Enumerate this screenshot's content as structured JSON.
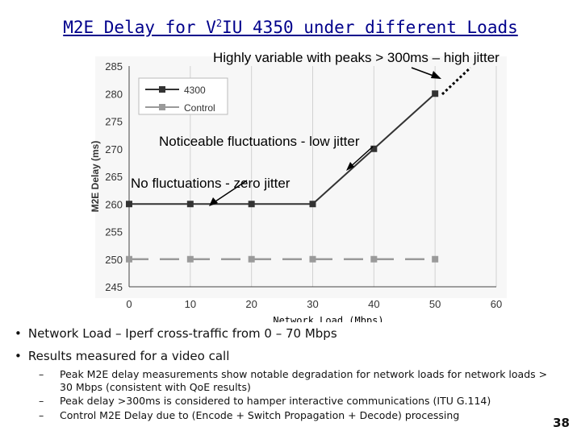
{
  "slide": {
    "title_pre": "M2E Delay for V",
    "title_sup": "2",
    "title_post": "IU 4350 under different Loads",
    "page_number": "38"
  },
  "annotations": {
    "high_jitter": "Highly variable with peaks > 300ms – high jitter",
    "low_jitter": "Noticeable fluctuations - low jitter",
    "zero_jitter": "No fluctuations - zero jitter"
  },
  "bullets": [
    "Network Load – Iperf cross-traffic from 0 – 70 Mbps",
    "Results measured for a video call"
  ],
  "sub_bullets": [
    "Peak M2E delay measurements show notable degradation for network loads for network loads > 30 Mbps (consistent with QoE results)",
    "Peak delay >300ms is considered to hamper interactive communications (ITU G.114)",
    "Control M2E Delay due to (Encode + Switch Propagation + Decode) processing"
  ],
  "chart_data": {
    "type": "line",
    "xlabel": "Network Load (Mbps)",
    "ylabel": "M2E Delay (ms)",
    "xlim": [
      0,
      60
    ],
    "ylim": [
      245,
      285
    ],
    "x_ticks": [
      0,
      10,
      20,
      30,
      40,
      50,
      60
    ],
    "y_ticks": [
      245,
      250,
      255,
      260,
      265,
      270,
      275,
      280,
      285
    ],
    "grid": "vertical",
    "legend_position": "top-left",
    "series": [
      {
        "name": "4300",
        "color": "#333333",
        "style": "solid",
        "x": [
          0,
          10,
          20,
          30,
          40,
          50
        ],
        "y": [
          260,
          260,
          260,
          260,
          270,
          280
        ]
      },
      {
        "name": "Control",
        "color": "#9a9a9a",
        "style": "dashed",
        "x": [
          0,
          10,
          20,
          30,
          40,
          50
        ],
        "y": [
          250,
          250,
          250,
          250,
          250,
          250
        ]
      }
    ]
  }
}
